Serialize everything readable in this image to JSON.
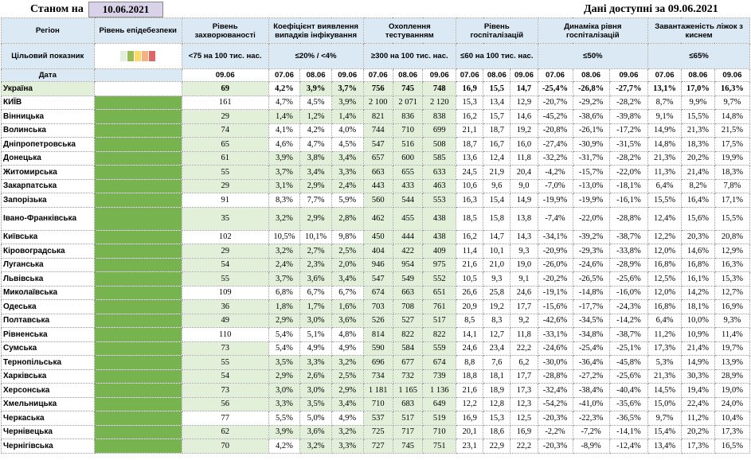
{
  "header": {
    "as_of_label": "Станом на",
    "as_of_date": "10.06.2021",
    "available_label": "Дані доступні за  09.06.2021"
  },
  "columns": {
    "region": "Регіон",
    "epidemic_level": "Рівень епідебезпеки",
    "incidence": "Рівень захворюваності",
    "positivity": "Коефіцієнт виявлення випадків інфікування",
    "testing": "Охоплення тестуванням",
    "hospitalization": "Рівень госпіталізацій",
    "hosp_dynamics": "Динаміка рівня госпіталізацій",
    "oxygen_beds": "Завантаженість ліжок з киснем"
  },
  "target_row": {
    "label": "Цільовий показник",
    "incidence": "<75 на 100 тис. нас.",
    "positivity": "≤20% / <4%",
    "testing": "≥300 на 100 тис. нас.",
    "hospitalization": "≤60 на 100 тис. нас.",
    "hosp_dynamics": "≤50%",
    "oxygen_beds": "≤65%",
    "level_colors": [
      "#e2efd9",
      "#9bbb59",
      "#ffd966",
      "#f4b183",
      "#e06666"
    ]
  },
  "date_row": {
    "label": "Дата",
    "incidence_date": "09.06",
    "d1": "07.06",
    "d2": "08.06",
    "d3": "09.06"
  },
  "rows": [
    [
      "Україна",
      "69",
      "4,2%",
      "3,9%",
      "3,7%",
      "756",
      "745",
      "748",
      "16,9",
      "15,5",
      "14,7",
      "-25,4%",
      "-26,8%",
      "-27,7%",
      "13,1%",
      "17,0%",
      "16,3%"
    ],
    [
      "КИЇВ",
      "161",
      "4,7%",
      "4,5%",
      "3,9%",
      "2 100",
      "2 071",
      "2 120",
      "15,3",
      "13,4",
      "12,9",
      "-20,7%",
      "-29,2%",
      "-28,2%",
      "8,7%",
      "9,9%",
      "9,7%"
    ],
    [
      "Вінницька",
      "29",
      "1,4%",
      "1,2%",
      "1,4%",
      "821",
      "836",
      "838",
      "16,2",
      "15,7",
      "14,6",
      "-45,2%",
      "-38,6%",
      "-39,8%",
      "9,1%",
      "15,5%",
      "14,8%"
    ],
    [
      "Волинська",
      "74",
      "4,1%",
      "4,2%",
      "4,0%",
      "744",
      "710",
      "699",
      "21,1",
      "18,7",
      "19,2",
      "-20,8%",
      "-26,1%",
      "-17,2%",
      "14,9%",
      "21,3%",
      "21,5%"
    ],
    [
      "Дніпропетровська",
      "65",
      "4,6%",
      "4,7%",
      "4,5%",
      "547",
      "516",
      "508",
      "18,7",
      "16,7",
      "16,0",
      "-27,4%",
      "-30,9%",
      "-31,5%",
      "14,8%",
      "18,3%",
      "17,5%"
    ],
    [
      "Донецька",
      "61",
      "3,9%",
      "3,8%",
      "3,4%",
      "657",
      "600",
      "585",
      "13,6",
      "12,4",
      "11,8",
      "-32,2%",
      "-31,7%",
      "-28,2%",
      "21,3%",
      "20,2%",
      "19,9%"
    ],
    [
      "Житомирська",
      "55",
      "3,7%",
      "3,4%",
      "3,3%",
      "663",
      "655",
      "633",
      "24,5",
      "21,9",
      "20,4",
      "-4,2%",
      "-15,7%",
      "-22,0%",
      "11,3%",
      "21,4%",
      "18,3%"
    ],
    [
      "Закарпатська",
      "29",
      "3,1%",
      "2,9%",
      "2,4%",
      "443",
      "433",
      "463",
      "10,6",
      "9,6",
      "9,0",
      "-7,0%",
      "-13,0%",
      "-18,1%",
      "6,4%",
      "8,2%",
      "7,8%"
    ],
    [
      "Запорізька",
      "91",
      "8,3%",
      "7,7%",
      "5,9%",
      "560",
      "544",
      "553",
      "16,3",
      "15,4",
      "14,9",
      "-19,9%",
      "-19,9%",
      "-16,1%",
      "15,5%",
      "16,4%",
      "17,1%"
    ],
    [
      "Івано-Франківська",
      "35",
      "3,2%",
      "2,9%",
      "2,8%",
      "462",
      "455",
      "438",
      "18,5",
      "15,8",
      "13,8",
      "-7,4%",
      "-22,0%",
      "-28,8%",
      "12,4%",
      "15,6%",
      "15,5%"
    ],
    [
      "Київська",
      "102",
      "10,5%",
      "10,1%",
      "9,8%",
      "450",
      "444",
      "438",
      "16,2",
      "14,7",
      "14,3",
      "-34,1%",
      "-39,2%",
      "-38,7%",
      "12,2%",
      "20,3%",
      "20,8%"
    ],
    [
      "Кіровоградська",
      "29",
      "3,2%",
      "2,7%",
      "2,5%",
      "404",
      "422",
      "409",
      "11,4",
      "10,1",
      "9,3",
      "-20,9%",
      "-29,3%",
      "-33,8%",
      "12,0%",
      "14,6%",
      "12,9%"
    ],
    [
      "Луганська",
      "54",
      "2,4%",
      "2,3%",
      "2,0%",
      "946",
      "954",
      "975",
      "21,6",
      "21,0",
      "19,0",
      "-26,0%",
      "-24,6%",
      "-28,9%",
      "16,8%",
      "16,8%",
      "16,3%"
    ],
    [
      "Львівська",
      "55",
      "3,7%",
      "3,6%",
      "3,4%",
      "547",
      "549",
      "552",
      "10,5",
      "9,3",
      "9,1",
      "-20,2%",
      "-26,5%",
      "-25,6%",
      "12,5%",
      "16,1%",
      "15,3%"
    ],
    [
      "Миколаївська",
      "109",
      "6,8%",
      "6,7%",
      "6,7%",
      "674",
      "663",
      "651",
      "26,6",
      "25,8",
      "24,6",
      "-19,1%",
      "-14,8%",
      "-16,0%",
      "12,0%",
      "14,2%",
      "12,7%"
    ],
    [
      "Одеська",
      "36",
      "1,8%",
      "1,7%",
      "1,6%",
      "703",
      "708",
      "761",
      "20,9",
      "19,2",
      "17,7",
      "-15,6%",
      "-17,7%",
      "-24,3%",
      "16,8%",
      "18,1%",
      "16,9%"
    ],
    [
      "Полтавська",
      "49",
      "2,9%",
      "3,0%",
      "3,6%",
      "526",
      "527",
      "517",
      "8,5",
      "8,3",
      "9,2",
      "-42,6%",
      "-34,5%",
      "-14,2%",
      "6,4%",
      "10,0%",
      "9,3%"
    ],
    [
      "Рівненська",
      "110",
      "5,4%",
      "5,1%",
      "4,8%",
      "814",
      "822",
      "822",
      "14,1",
      "12,7",
      "11,8",
      "-33,1%",
      "-34,8%",
      "-38,7%",
      "11,2%",
      "10,9%",
      "11,4%"
    ],
    [
      "Сумська",
      "73",
      "5,4%",
      "4,9%",
      "4,9%",
      "590",
      "584",
      "559",
      "24,6",
      "23,4",
      "22,2",
      "-24,6%",
      "-25,4%",
      "-25,1%",
      "17,3%",
      "21,4%",
      "19,7%"
    ],
    [
      "Тернопільська",
      "55",
      "3,5%",
      "3,3%",
      "3,2%",
      "696",
      "677",
      "674",
      "8,8",
      "7,6",
      "6,2",
      "-30,0%",
      "-36,4%",
      "-45,8%",
      "5,3%",
      "14,9%",
      "13,9%"
    ],
    [
      "Харківська",
      "54",
      "2,9%",
      "2,6%",
      "2,5%",
      "734",
      "732",
      "739",
      "18,8",
      "18,1",
      "17,7",
      "-28,8%",
      "-27,2%",
      "-25,6%",
      "21,3%",
      "30,3%",
      "28,9%"
    ],
    [
      "Херсонська",
      "73",
      "3,0%",
      "3,0%",
      "2,9%",
      "1 181",
      "1 165",
      "1 136",
      "21,6",
      "18,9",
      "17,3",
      "-32,4%",
      "-38,4%",
      "-40,4%",
      "14,5%",
      "19,4%",
      "19,0%"
    ],
    [
      "Хмельницька",
      "56",
      "3,3%",
      "3,5%",
      "3,4%",
      "710",
      "683",
      "649",
      "12,2",
      "12,8",
      "12,3",
      "-54,2%",
      "-41,0%",
      "-35,6%",
      "15,0%",
      "22,4%",
      "24,0%"
    ],
    [
      "Черкаська",
      "77",
      "5,5%",
      "5,0%",
      "4,9%",
      "537",
      "517",
      "519",
      "16,9",
      "15,3",
      "12,5",
      "-20,3%",
      "-22,3%",
      "-36,5%",
      "9,7%",
      "11,2%",
      "10,4%"
    ],
    [
      "Чернівецька",
      "62",
      "3,9%",
      "3,6%",
      "3,2%",
      "725",
      "717",
      "710",
      "20,1",
      "18,6",
      "16,9",
      "-2,2%",
      "-7,2%",
      "-14,1%",
      "15,4%",
      "20,2%",
      "17,3%"
    ],
    [
      "Чернігівська",
      "70",
      "4,2%",
      "3,2%",
      "3,3%",
      "727",
      "745",
      "751",
      "23,1",
      "22,9",
      "22,2",
      "-20,3%",
      "-8,9%",
      "-12,4%",
      "13,4%",
      "17,3%",
      "16,5%"
    ]
  ],
  "green_cells": [
    [
      1,
      2,
      3,
      4,
      5,
      6,
      7
    ],
    [
      4,
      5,
      6,
      7
    ],
    [
      1,
      2,
      3,
      4,
      5,
      6,
      7
    ],
    [
      1,
      5,
      6,
      7
    ],
    [
      1,
      5,
      6,
      7
    ],
    [
      1,
      2,
      3,
      4,
      5,
      6,
      7
    ],
    [
      1,
      2,
      3,
      4,
      5,
      6,
      7
    ],
    [
      1,
      2,
      3,
      4,
      5,
      6,
      7
    ],
    [
      5,
      6,
      7
    ],
    [
      1,
      2,
      3,
      4,
      5,
      6,
      7
    ],
    [
      5,
      6,
      7
    ],
    [
      1,
      2,
      3,
      4,
      5,
      6,
      7
    ],
    [
      1,
      2,
      3,
      4,
      5,
      6,
      7
    ],
    [
      1,
      2,
      3,
      4,
      5,
      6,
      7
    ],
    [
      5,
      6,
      7
    ],
    [
      1,
      2,
      3,
      4,
      5,
      6,
      7
    ],
    [
      1,
      2,
      3,
      4,
      5,
      6,
      7
    ],
    [
      5,
      6,
      7
    ],
    [
      1,
      5,
      6,
      7
    ],
    [
      1,
      2,
      3,
      4,
      5,
      6,
      7
    ],
    [
      1,
      2,
      3,
      4,
      5,
      6,
      7
    ],
    [
      1,
      2,
      3,
      4,
      5,
      6,
      7
    ],
    [
      1,
      2,
      3,
      4,
      5,
      6,
      7
    ],
    [
      5,
      6,
      7
    ],
    [
      1,
      2,
      3,
      4,
      5,
      6,
      7
    ],
    [
      1,
      3,
      4,
      5,
      6,
      7
    ]
  ]
}
